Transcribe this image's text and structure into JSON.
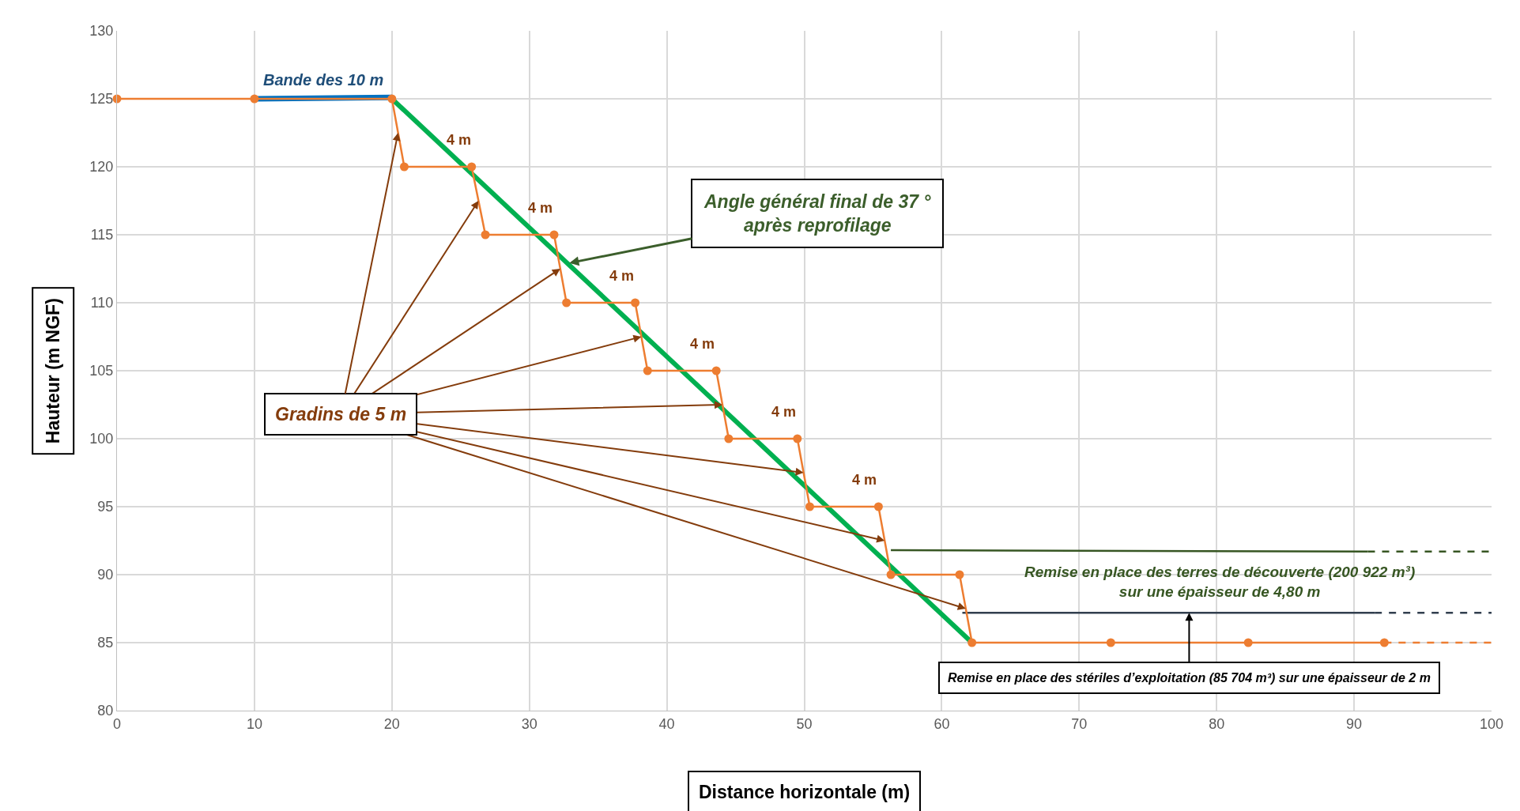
{
  "chart_data": {
    "type": "line",
    "xlabel": "Distance horizontale (m)",
    "ylabel": "Hauteur (m NGF)",
    "xlim": [
      0,
      100
    ],
    "xticks": [
      0,
      10,
      20,
      30,
      40,
      50,
      60,
      70,
      80,
      90,
      100
    ],
    "ylim": [
      80,
      130
    ],
    "yticks": [
      80,
      85,
      90,
      95,
      100,
      105,
      110,
      115,
      120,
      125,
      130
    ],
    "grid": true,
    "series": [
      {
        "color": "#ed7d31",
        "marker": "circle",
        "line_style": "solid",
        "x": [
          0,
          10,
          20,
          20.9,
          25.8,
          26.8,
          31.8,
          32.7,
          37.7,
          38.6,
          43.6,
          44.5,
          49.5,
          50.4,
          55.4,
          56.3,
          61.3,
          62.2,
          72.3,
          82.3,
          92.2
        ],
        "values": [
          125,
          125,
          125,
          120,
          120,
          115,
          115,
          110,
          110,
          105,
          105,
          100,
          100,
          95,
          95,
          90,
          90,
          85,
          85,
          85,
          85
        ]
      },
      {
        "color": "#ed7d31",
        "marker": "none",
        "line_style": "dashed",
        "x": [
          92.2,
          100
        ],
        "values": [
          85,
          85
        ]
      },
      {
        "color": "#0070c0",
        "marker": "none",
        "line_style": "solid",
        "x": [
          10,
          20
        ],
        "values": [
          125,
          125.1
        ]
      },
      {
        "color": "#00b050",
        "marker": "none",
        "line_style": "solid",
        "x": [
          20,
          62.2
        ],
        "values": [
          125,
          85
        ]
      },
      {
        "color": "#375623",
        "marker": "none",
        "line_style": "solid",
        "x": [
          56.3,
          91
        ],
        "values": [
          91.8,
          91.7
        ]
      },
      {
        "color": "#375623",
        "marker": "none",
        "line_style": "dashed",
        "x": [
          91,
          100
        ],
        "values": [
          91.7,
          91.7
        ]
      },
      {
        "color": "#323f4f",
        "marker": "none",
        "line_style": "solid",
        "x": [
          61.5,
          91.5
        ],
        "values": [
          87.2,
          87.2
        ]
      },
      {
        "color": "#323f4f",
        "marker": "none",
        "line_style": "dashed",
        "x": [
          91.5,
          100
        ],
        "values": [
          87.2,
          87.2
        ]
      }
    ],
    "annotations": [
      {
        "text": "Bande des 10 m",
        "x": 15,
        "y": 125.1
      },
      "4 m",
      "4 m",
      "4 m",
      "4 m",
      "4 m",
      "4 m",
      {
        "text": "Gradins de 5 m",
        "x": 20.45,
        "y": 122.5
      },
      {
        "text": "Angle général final de 37 °\naprès reprofilage",
        "x": 32.8,
        "y": 112.9
      },
      "Remise en place des terres de découverte (200 922 m³)\nsur une épaisseur de 4,80 m",
      {
        "text": "Remise en place des stériles d’exploitation (85 704 m³) sur une épaisseur de 2 m",
        "x": 78,
        "y": 87.2
      }
    ]
  }
}
